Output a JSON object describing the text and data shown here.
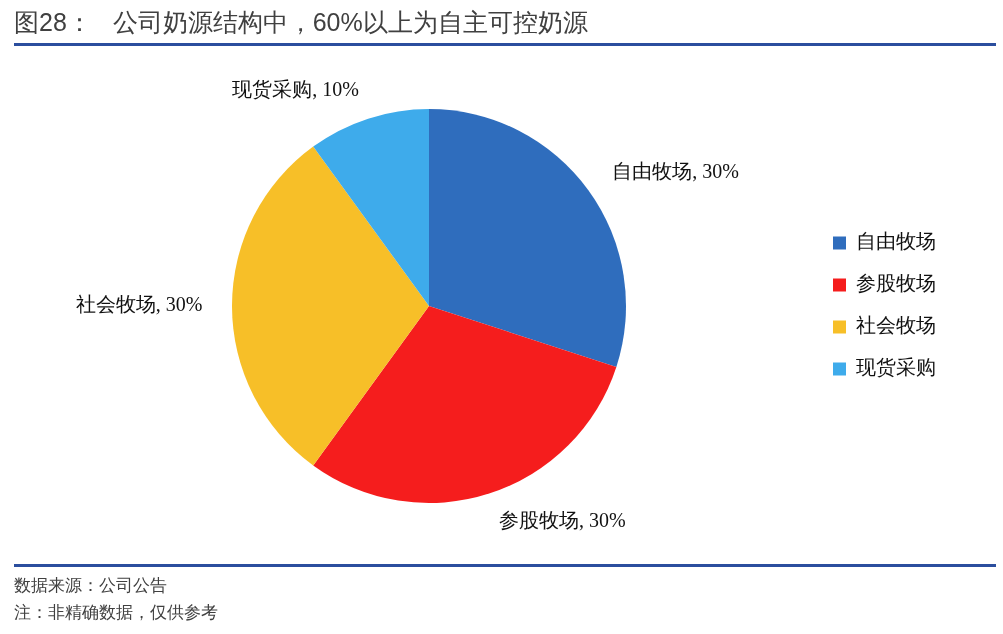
{
  "chart_data": {
    "type": "pie",
    "title": "图28：   公司奶源结构中，60%以上为自主可控奶源",
    "categories": [
      "自由牧场",
      "参股牧场",
      "社会牧场",
      "现货采购"
    ],
    "values": [
      30,
      30,
      30,
      10
    ],
    "value_labels": [
      "自由牧场, 30%",
      "参股牧场, 30%",
      "社会牧场, 30%",
      "现货采购, 10%"
    ],
    "colors": [
      "#2f6dbd",
      "#f51d1d",
      "#f7bf28",
      "#3eabeb"
    ],
    "legend": "right",
    "annotations": [
      "数据来源：公司公告",
      "注：非精确数据，仅供参考"
    ]
  }
}
